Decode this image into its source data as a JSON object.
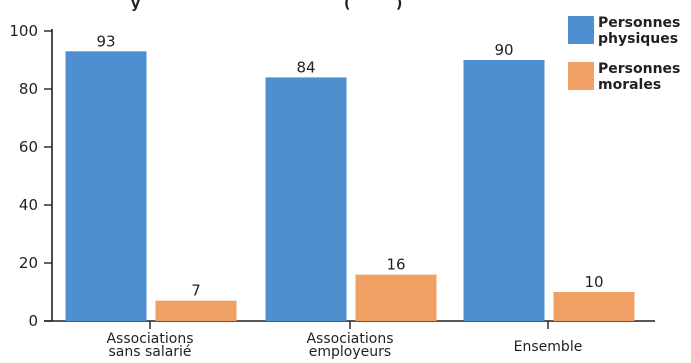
{
  "chart_data": {
    "type": "bar",
    "title_fragments": [
      "y",
      "(",
      ")"
    ],
    "categories": [
      [
        "Associations",
        "sans salarié"
      ],
      [
        "Associations",
        "employeurs"
      ],
      [
        "Ensemble"
      ]
    ],
    "series": [
      {
        "name": "Personnes physiques",
        "name_lines": [
          "Personnes",
          "physiques"
        ],
        "color": "#4f8fd0",
        "values": [
          93,
          84,
          90
        ]
      },
      {
        "name": "Personnes morales",
        "name_lines": [
          "Personnes",
          "morales"
        ],
        "color": "#f1a065",
        "values": [
          7,
          16,
          10
        ]
      }
    ],
    "y_ticks": [
      0,
      20,
      40,
      60,
      80,
      100
    ],
    "ylim": [
      0,
      100
    ],
    "grid": false,
    "legend_position": "top-right",
    "xlabel": "",
    "ylabel": ""
  }
}
